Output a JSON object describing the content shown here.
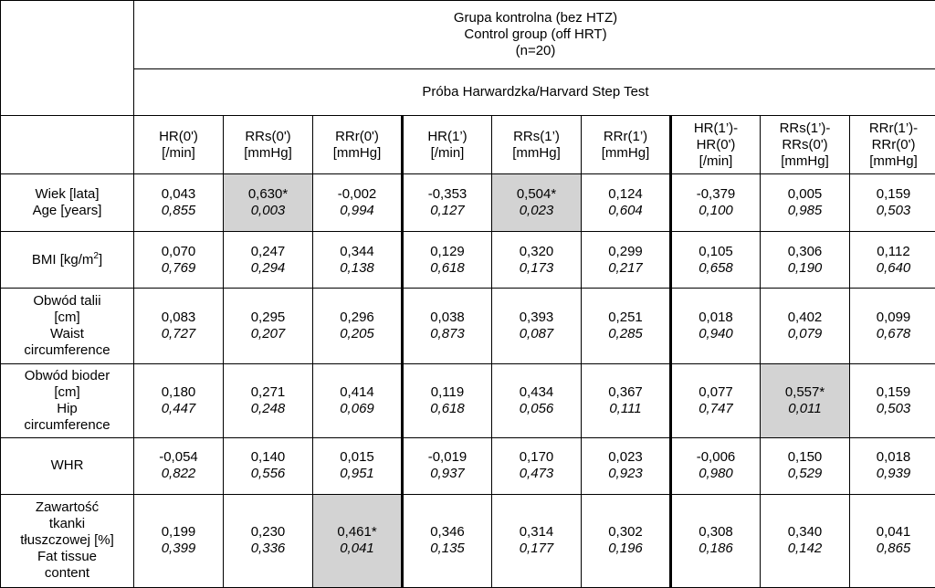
{
  "header": {
    "group_lines": [
      "Grupa kontrolna (bez HTZ)",
      "Control group (off HRT)",
      "(n=20)"
    ],
    "test_title": "Próba Harwardzka/Harvard Step Test"
  },
  "columns": [
    {
      "lines": [
        "HR(0')",
        "[/min]"
      ]
    },
    {
      "lines": [
        "RRs(0')",
        "[mmHg]"
      ]
    },
    {
      "lines": [
        "RRr(0')",
        "[mmHg]"
      ]
    },
    {
      "lines": [
        "HR(1’)",
        "[/min]"
      ]
    },
    {
      "lines": [
        "RRs(1’)",
        "[mmHg]"
      ]
    },
    {
      "lines": [
        "RRr(1’)",
        "[mmHg]"
      ]
    },
    {
      "lines": [
        "HR(1’)-",
        "HR(0')",
        "[/min]"
      ]
    },
    {
      "lines": [
        "RRs(1’)-",
        "RRs(0')",
        "[mmHg]"
      ]
    },
    {
      "lines": [
        "RRr(1’)-",
        "RRr(0')",
        "[mmHg]"
      ]
    }
  ],
  "rows": [
    {
      "label_lines": [
        "Wiek [lata]",
        "Age [years]"
      ],
      "cells": [
        {
          "r": "0,043",
          "p": "0,855"
        },
        {
          "r": "0,630*",
          "p": "0,003",
          "shaded": true
        },
        {
          "r": "-0,002",
          "p": "0,994"
        },
        {
          "r": "-0,353",
          "p": "0,127"
        },
        {
          "r": "0,504*",
          "p": "0,023",
          "shaded": true
        },
        {
          "r": "0,124",
          "p": "0,604"
        },
        {
          "r": "-0,379",
          "p": "0,100"
        },
        {
          "r": "0,005",
          "p": "0,985"
        },
        {
          "r": "0,159",
          "p": "0,503"
        }
      ]
    },
    {
      "label_lines": [
        "BMI [kg/m"
      ],
      "label_sup": "2",
      "label_suffix": "]",
      "cells": [
        {
          "r": "0,070",
          "p": "0,769"
        },
        {
          "r": "0,247",
          "p": "0,294"
        },
        {
          "r": "0,344",
          "p": "0,138"
        },
        {
          "r": "0,129",
          "p": "0,618"
        },
        {
          "r": "0,320",
          "p": "0,173"
        },
        {
          "r": "0,299",
          "p": "0,217"
        },
        {
          "r": "0,105",
          "p": "0,658"
        },
        {
          "r": "0,306",
          "p": "0,190"
        },
        {
          "r": "0,112",
          "p": "0,640"
        }
      ]
    },
    {
      "label_lines": [
        "Obwód talii",
        "[cm]",
        "Waist",
        "circumference"
      ],
      "cells": [
        {
          "r": "0,083",
          "p": "0,727"
        },
        {
          "r": "0,295",
          "p": "0,207"
        },
        {
          "r": "0,296",
          "p": "0,205"
        },
        {
          "r": "0,038",
          "p": "0,873"
        },
        {
          "r": "0,393",
          "p": "0,087"
        },
        {
          "r": "0,251",
          "p": "0,285"
        },
        {
          "r": "0,018",
          "p": "0,940"
        },
        {
          "r": "0,402",
          "p": "0,079"
        },
        {
          "r": "0,099",
          "p": "0,678"
        }
      ]
    },
    {
      "label_lines": [
        "Obwód bioder",
        "[cm]",
        "Hip",
        "circumference"
      ],
      "cells": [
        {
          "r": "0,180",
          "p": "0,447"
        },
        {
          "r": "0,271",
          "p": "0,248"
        },
        {
          "r": "0,414",
          "p": "0,069"
        },
        {
          "r": "0,119",
          "p": "0,618"
        },
        {
          "r": "0,434",
          "p": "0,056"
        },
        {
          "r": "0,367",
          "p": "0,111"
        },
        {
          "r": "0,077",
          "p": "0,747"
        },
        {
          "r": "0,557*",
          "p": "0,011",
          "shaded": true
        },
        {
          "r": "0,159",
          "p": "0,503"
        }
      ]
    },
    {
      "label_lines": [
        "WHR"
      ],
      "cells": [
        {
          "r": "-0,054",
          "p": "0,822"
        },
        {
          "r": "0,140",
          "p": "0,556"
        },
        {
          "r": "0,015",
          "p": "0,951"
        },
        {
          "r": "-0,019",
          "p": "0,937"
        },
        {
          "r": "0,170",
          "p": "0,473"
        },
        {
          "r": "0,023",
          "p": "0,923"
        },
        {
          "r": "-0,006",
          "p": "0,980"
        },
        {
          "r": "0,150",
          "p": "0,529"
        },
        {
          "r": "0,018",
          "p": "0,939"
        }
      ]
    },
    {
      "label_lines": [
        "Zawartość",
        "tkanki",
        "tłuszczowej [%]",
        "Fat tissue",
        "content"
      ],
      "cells": [
        {
          "r": "0,199",
          "p": "0,399"
        },
        {
          "r": "0,230",
          "p": "0,336"
        },
        {
          "r": "0,461*",
          "p": "0,041",
          "shaded": true
        },
        {
          "r": "0,346",
          "p": "0,135"
        },
        {
          "r": "0,314",
          "p": "0,177"
        },
        {
          "r": "0,302",
          "p": "0,196"
        },
        {
          "r": "0,308",
          "p": "0,186"
        },
        {
          "r": "0,340",
          "p": "0,142"
        },
        {
          "r": "0,041",
          "p": "0,865"
        }
      ]
    }
  ],
  "colors": {
    "shaded": "#d3d3d3",
    "border": "#000000"
  }
}
